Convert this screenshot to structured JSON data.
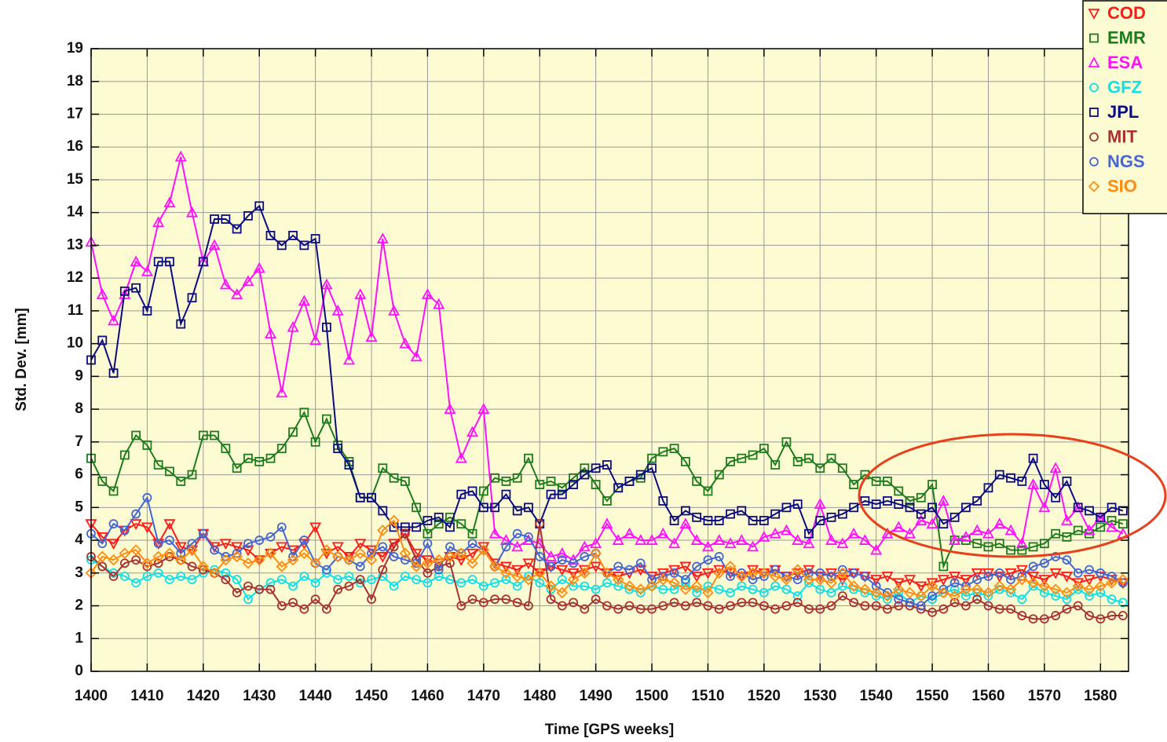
{
  "chart_data": {
    "type": "line",
    "xlabel": "Time [GPS weeks]",
    "ylabel": "Std. Dev. [mm]",
    "xlim": [
      1400,
      1585
    ],
    "ylim": [
      0,
      19
    ],
    "xticks": [
      1400,
      1410,
      1420,
      1430,
      1440,
      1450,
      1460,
      1470,
      1480,
      1490,
      1500,
      1510,
      1520,
      1530,
      1540,
      1550,
      1560,
      1570,
      1580
    ],
    "yticks": [
      0,
      1,
      2,
      3,
      4,
      5,
      6,
      7,
      8,
      9,
      10,
      11,
      12,
      13,
      14,
      15,
      16,
      17,
      18,
      19
    ],
    "grid": true,
    "legend": "top-right",
    "x": [
      1400,
      1402,
      1404,
      1406,
      1408,
      1410,
      1412,
      1414,
      1416,
      1418,
      1420,
      1422,
      1424,
      1426,
      1428,
      1430,
      1432,
      1434,
      1436,
      1438,
      1440,
      1442,
      1444,
      1446,
      1448,
      1450,
      1452,
      1454,
      1456,
      1458,
      1460,
      1462,
      1464,
      1466,
      1468,
      1470,
      1472,
      1474,
      1476,
      1478,
      1480,
      1482,
      1484,
      1486,
      1488,
      1490,
      1492,
      1494,
      1496,
      1498,
      1500,
      1502,
      1504,
      1506,
      1508,
      1510,
      1512,
      1514,
      1516,
      1518,
      1520,
      1522,
      1524,
      1526,
      1528,
      1530,
      1532,
      1534,
      1536,
      1538,
      1540,
      1542,
      1544,
      1546,
      1548,
      1550,
      1552,
      1554,
      1556,
      1558,
      1560,
      1562,
      1564,
      1566,
      1568,
      1570,
      1572,
      1574,
      1576,
      1578,
      1580,
      1582,
      1584
    ],
    "series": [
      {
        "name": "COD",
        "color": "#ff1a1a",
        "marker": "triangle-down",
        "values": [
          4.5,
          4.1,
          3.9,
          4.3,
          4.5,
          4.4,
          3.9,
          4.5,
          3.8,
          3.7,
          4.2,
          3.8,
          3.9,
          3.8,
          3.7,
          3.4,
          3.6,
          3.8,
          3.7,
          3.9,
          4.4,
          3.6,
          3.8,
          3.5,
          3.9,
          3.7,
          3.5,
          3.9,
          4.2,
          3.6,
          3.4,
          3.3,
          3.5,
          3.4,
          3.6,
          3.8,
          3.3,
          3.2,
          3.1,
          3.3,
          3.0,
          3.2,
          3.1,
          3.0,
          3.1,
          3.2,
          3.0,
          2.9,
          3.0,
          3.1,
          2.9,
          3.0,
          3.1,
          3.2,
          2.9,
          3.0,
          3.1,
          3.0,
          2.9,
          3.1,
          3.0,
          3.1,
          2.9,
          3.0,
          3.1,
          2.9,
          3.0,
          2.8,
          3.0,
          2.9,
          2.8,
          2.9,
          2.7,
          2.8,
          2.6,
          2.7,
          2.8,
          2.9,
          2.8,
          3.0,
          3.0,
          2.9,
          3.0,
          3.1,
          2.9,
          2.8,
          3.0,
          2.9,
          2.7,
          2.8,
          2.9,
          2.8,
          2.7
        ]
      },
      {
        "name": "EMR",
        "color": "#1e7b1e",
        "marker": "square",
        "values": [
          6.5,
          5.8,
          5.5,
          6.6,
          7.2,
          6.9,
          6.3,
          6.1,
          5.8,
          6.0,
          7.2,
          7.2,
          6.8,
          6.2,
          6.5,
          6.4,
          6.5,
          6.8,
          7.3,
          7.9,
          7.0,
          7.7,
          6.9,
          6.4,
          5.3,
          5.3,
          6.2,
          5.9,
          5.8,
          5.0,
          4.2,
          4.5,
          4.7,
          4.5,
          4.2,
          5.5,
          5.9,
          5.8,
          5.9,
          6.5,
          5.7,
          5.8,
          5.6,
          5.9,
          6.2,
          5.7,
          5.2,
          5.6,
          5.8,
          5.9,
          6.5,
          6.7,
          6.8,
          6.4,
          5.8,
          5.5,
          6.0,
          6.4,
          6.5,
          6.6,
          6.8,
          6.3,
          7.0,
          6.4,
          6.5,
          6.2,
          6.5,
          6.2,
          5.7,
          6.0,
          5.8,
          5.8,
          5.5,
          5.2,
          5.3,
          5.7,
          3.2,
          4.0,
          4.0,
          3.9,
          3.8,
          3.9,
          3.7,
          3.7,
          3.8,
          3.9,
          4.2,
          4.1,
          4.3,
          4.2,
          4.4,
          4.6,
          4.5
        ]
      },
      {
        "name": "ESA",
        "color": "#ff10ff",
        "marker": "triangle-up",
        "values": [
          13.1,
          11.5,
          10.7,
          11.5,
          12.5,
          12.2,
          13.7,
          14.3,
          15.7,
          14.0,
          12.5,
          13.0,
          11.8,
          11.5,
          11.9,
          12.3,
          10.3,
          8.5,
          10.5,
          11.3,
          10.1,
          11.8,
          11.0,
          9.5,
          11.5,
          10.2,
          13.2,
          11.0,
          10.0,
          9.6,
          11.5,
          11.2,
          8.0,
          6.5,
          7.3,
          8.0,
          4.2,
          4.0,
          3.8,
          4.0,
          3.9,
          3.5,
          3.6,
          3.4,
          3.8,
          3.9,
          4.5,
          4.0,
          4.2,
          4.0,
          4.0,
          4.2,
          3.9,
          4.5,
          4.0,
          3.8,
          4.0,
          3.9,
          4.0,
          3.8,
          4.1,
          4.2,
          4.3,
          4.0,
          3.9,
          5.1,
          4.0,
          3.9,
          4.2,
          4.0,
          3.7,
          4.2,
          4.4,
          4.2,
          4.6,
          4.5,
          5.2,
          4.0,
          4.1,
          4.3,
          4.2,
          4.5,
          4.3,
          3.9,
          5.7,
          5.0,
          6.2,
          4.6,
          5.0,
          4.3,
          4.7,
          4.4,
          4.2
        ]
      },
      {
        "name": "GFZ",
        "color": "#10e0e8",
        "marker": "circle",
        "values": [
          3.4,
          3.2,
          3.0,
          2.9,
          2.7,
          2.9,
          3.0,
          2.8,
          2.9,
          2.8,
          3.0,
          3.1,
          3.0,
          2.8,
          2.2,
          2.5,
          2.7,
          2.8,
          2.6,
          2.9,
          2.7,
          3.0,
          2.8,
          2.9,
          2.7,
          2.8,
          2.9,
          2.6,
          2.9,
          2.8,
          2.7,
          2.9,
          2.8,
          2.7,
          2.8,
          2.6,
          2.7,
          2.8,
          2.6,
          2.9,
          2.7,
          2.5,
          2.8,
          2.6,
          2.6,
          2.5,
          2.7,
          2.6,
          2.5,
          2.4,
          2.6,
          2.5,
          2.5,
          2.7,
          2.4,
          2.6,
          2.5,
          2.4,
          2.6,
          2.5,
          2.4,
          2.6,
          2.5,
          2.3,
          2.7,
          2.5,
          2.4,
          2.6,
          2.5,
          2.4,
          2.3,
          2.2,
          2.4,
          2.1,
          2.3,
          2.2,
          2.4,
          2.5,
          2.3,
          2.4,
          2.3,
          2.5,
          2.4,
          2.2,
          2.6,
          2.4,
          2.3,
          2.2,
          2.5,
          2.3,
          2.4,
          2.2,
          2.1
        ]
      },
      {
        "name": "JPL",
        "color": "#0c0c82",
        "marker": "square",
        "values": [
          9.5,
          10.1,
          9.1,
          11.6,
          11.7,
          11.0,
          12.5,
          12.5,
          10.6,
          11.4,
          12.5,
          13.8,
          13.8,
          13.5,
          13.9,
          14.2,
          13.3,
          13.0,
          13.3,
          13.0,
          13.2,
          10.5,
          6.8,
          6.3,
          5.3,
          5.3,
          4.9,
          4.4,
          4.4,
          4.4,
          4.6,
          4.7,
          4.4,
          5.4,
          5.5,
          5.0,
          5.0,
          5.4,
          4.9,
          5.0,
          4.5,
          5.4,
          5.4,
          5.7,
          6.0,
          6.2,
          6.3,
          5.6,
          5.8,
          6.0,
          6.2,
          5.2,
          4.6,
          4.9,
          4.7,
          4.6,
          4.6,
          4.8,
          4.9,
          4.6,
          4.6,
          4.8,
          5.0,
          5.1,
          4.2,
          4.6,
          4.7,
          4.8,
          5.0,
          5.2,
          5.1,
          5.2,
          5.1,
          5.0,
          4.8,
          5.0,
          4.5,
          4.7,
          5.0,
          5.2,
          5.6,
          6.0,
          5.9,
          5.8,
          6.5,
          5.7,
          5.3,
          5.8,
          5.0,
          4.9,
          4.7,
          5.0,
          4.9
        ]
      },
      {
        "name": "MIT",
        "color": "#a83232",
        "marker": "circle",
        "values": [
          3.5,
          3.2,
          2.9,
          3.3,
          3.4,
          3.2,
          3.3,
          3.5,
          3.4,
          3.2,
          3.1,
          3.0,
          2.8,
          2.4,
          2.6,
          2.5,
          2.5,
          2.0,
          2.1,
          1.9,
          2.2,
          1.9,
          2.5,
          2.6,
          2.8,
          2.2,
          3.1,
          3.8,
          4.2,
          3.4,
          3.0,
          3.2,
          3.3,
          2.0,
          2.2,
          2.1,
          2.2,
          2.2,
          2.1,
          2.0,
          4.5,
          2.2,
          2.0,
          2.1,
          1.9,
          2.2,
          2.0,
          1.9,
          2.0,
          1.9,
          1.9,
          2.0,
          2.1,
          2.0,
          2.1,
          2.0,
          1.9,
          2.0,
          2.1,
          2.1,
          2.0,
          1.9,
          2.0,
          2.1,
          1.9,
          1.9,
          2.0,
          2.3,
          2.1,
          2.0,
          2.0,
          1.9,
          2.0,
          2.0,
          1.9,
          1.8,
          1.9,
          2.1,
          2.0,
          2.2,
          2.0,
          1.9,
          1.9,
          1.7,
          1.6,
          1.6,
          1.7,
          1.9,
          2.0,
          1.7,
          1.6,
          1.7,
          1.7
        ]
      },
      {
        "name": "NGS",
        "color": "#4466d4",
        "marker": "circle",
        "values": [
          4.2,
          3.9,
          4.5,
          4.3,
          4.8,
          5.3,
          3.9,
          4.0,
          3.6,
          3.9,
          4.2,
          3.7,
          3.5,
          3.6,
          3.9,
          4.0,
          4.1,
          4.4,
          3.5,
          4.0,
          3.3,
          3.1,
          3.5,
          3.4,
          3.2,
          3.6,
          3.8,
          3.5,
          3.4,
          3.3,
          3.9,
          3.1,
          3.8,
          3.6,
          3.9,
          3.7,
          3.2,
          3.8,
          4.2,
          4.1,
          3.5,
          3.2,
          3.4,
          3.3,
          3.5,
          3.6,
          3.0,
          3.2,
          3.1,
          3.3,
          2.8,
          2.9,
          3.0,
          2.8,
          3.2,
          3.4,
          3.5,
          2.9,
          3.0,
          2.8,
          2.9,
          3.1,
          2.9,
          2.8,
          3.0,
          3.0,
          2.9,
          3.1,
          3.0,
          2.9,
          2.6,
          2.4,
          2.2,
          2.1,
          2.0,
          2.3,
          2.5,
          2.7,
          2.6,
          2.8,
          2.9,
          3.0,
          2.8,
          2.9,
          3.2,
          3.3,
          3.5,
          3.4,
          3.0,
          3.1,
          3.0,
          2.9,
          2.7
        ]
      },
      {
        "name": "SIO",
        "color": "#ff8c10",
        "marker": "diamond",
        "values": [
          3.0,
          3.5,
          3.4,
          3.6,
          3.7,
          3.3,
          3.5,
          3.6,
          3.4,
          3.7,
          3.2,
          3.0,
          3.4,
          3.5,
          3.3,
          3.4,
          3.6,
          3.2,
          3.4,
          3.6,
          3.3,
          3.7,
          3.5,
          3.4,
          3.6,
          3.4,
          4.3,
          4.6,
          3.6,
          3.2,
          3.3,
          3.4,
          3.5,
          3.6,
          3.3,
          3.7,
          3.2,
          3.0,
          2.9,
          2.8,
          3.0,
          2.6,
          2.4,
          2.8,
          3.0,
          3.6,
          3.0,
          2.8,
          2.6,
          2.5,
          2.6,
          2.8,
          2.7,
          2.5,
          2.6,
          2.4,
          3.0,
          3.2,
          2.9,
          3.0,
          3.0,
          2.9,
          2.8,
          3.1,
          2.8,
          2.8,
          2.7,
          3.0,
          2.6,
          2.5,
          2.4,
          2.3,
          2.5,
          2.4,
          2.3,
          2.6,
          2.4,
          2.3,
          2.5,
          2.5,
          2.4,
          2.6,
          2.5,
          2.8,
          2.7,
          2.6,
          2.5,
          2.4,
          2.6,
          2.5,
          2.6,
          2.7,
          2.8
        ]
      }
    ]
  }
}
